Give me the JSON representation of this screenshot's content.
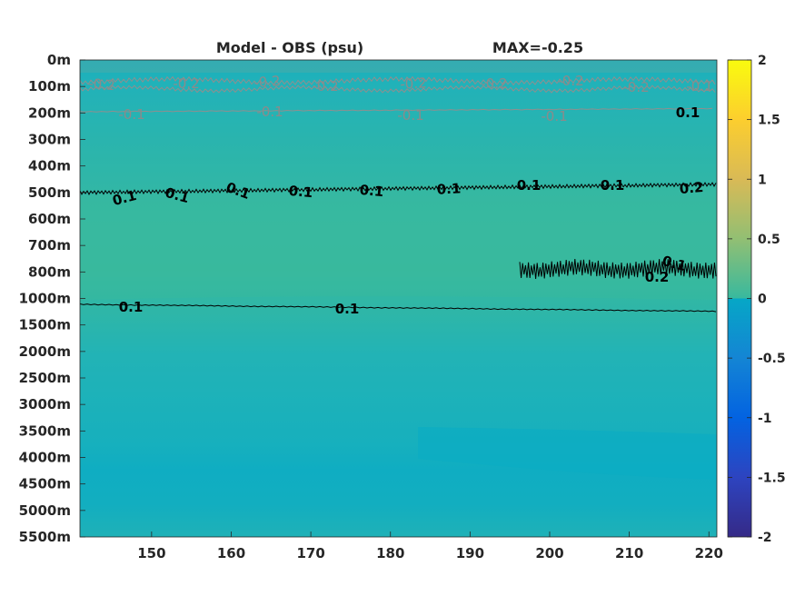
{
  "chart_data": {
    "type": "heatmap",
    "title": "Model - OBS (psu)",
    "title_right": "MAX=-0.25",
    "x_ticks": [
      150,
      160,
      170,
      180,
      190,
      200,
      210,
      220
    ],
    "xlim": [
      141,
      221
    ],
    "y_ticks": [
      "0m",
      "100m",
      "200m",
      "300m",
      "400m",
      "500m",
      "600m",
      "700m",
      "800m",
      "1000m",
      "1500m",
      "2000m",
      "2500m",
      "3000m",
      "3500m",
      "4000m",
      "4500m",
      "5000m",
      "5500m"
    ],
    "colorbar": {
      "ticks": [
        2,
        1.5,
        1,
        0.5,
        0,
        -0.5,
        -1,
        -1.5,
        -2
      ],
      "clim": [
        -2,
        2
      ],
      "colormap": "parula",
      "colors": [
        "#352a87",
        "#0363e1",
        "#1485d4",
        "#06a7c6",
        "#38b99e",
        "#92bf73",
        "#d9ba56",
        "#fcce2e",
        "#f9fb0e"
      ]
    },
    "contour_levels": [
      0.2,
      0.1,
      -0.1,
      -0.2
    ],
    "contour_labels": [
      {
        "text": "-0.2",
        "color": "gray"
      },
      {
        "text": "-0.2",
        "color": "gray"
      },
      {
        "text": "-0.2",
        "color": "gray"
      },
      {
        "text": "-0.2",
        "color": "gray"
      },
      {
        "text": "-0.2",
        "color": "gray"
      },
      {
        "text": "-0.2",
        "color": "gray"
      },
      {
        "text": "-0.2",
        "color": "gray"
      },
      {
        "text": "-0.2",
        "color": "gray"
      },
      {
        "text": "-0.1",
        "color": "gray"
      },
      {
        "text": "-0.1",
        "color": "gray"
      },
      {
        "text": "-0.1",
        "color": "gray"
      },
      {
        "text": "-0.1",
        "color": "gray"
      },
      {
        "text": "-0.1",
        "color": "gray"
      },
      {
        "text": "0.1",
        "color": "black"
      },
      {
        "text": "0.1",
        "color": "black"
      },
      {
        "text": "0.1",
        "color": "black"
      },
      {
        "text": "0.1",
        "color": "black"
      },
      {
        "text": "0.1",
        "color": "black"
      },
      {
        "text": "0.1",
        "color": "black"
      },
      {
        "text": "0.1",
        "color": "black"
      },
      {
        "text": "0.1",
        "color": "black"
      },
      {
        "text": "0.1",
        "color": "black"
      },
      {
        "text": "0.2",
        "color": "black"
      },
      {
        "text": "0.2",
        "color": "black"
      },
      {
        "text": "0.1",
        "color": "black"
      },
      {
        "text": "0.1",
        "color": "black"
      },
      {
        "text": "0.1",
        "color": "black"
      }
    ]
  }
}
